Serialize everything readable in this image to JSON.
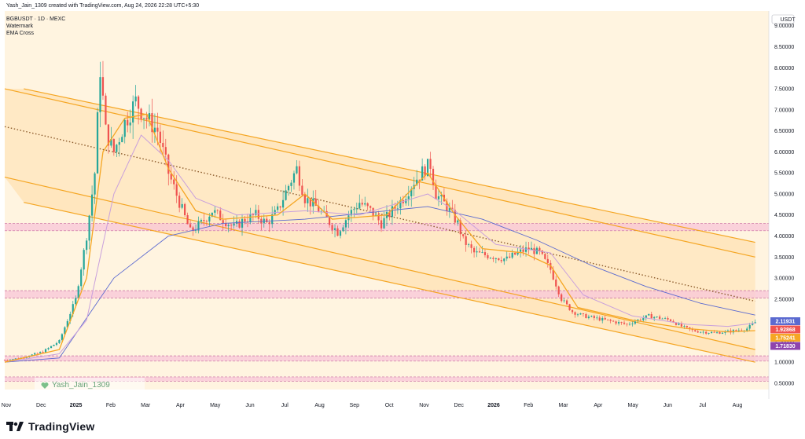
{
  "header": {
    "creator_line": "Yash_Jain_1309 created with TradingView.com, Aug 24, 2026 22:28 UTC+5:30",
    "symbol_line": "BGBUSDT · 1D · MEXC",
    "indicator_1": "Watermark",
    "indicator_2": "EMA Cross"
  },
  "watermark_text": "Yash_Jain_1309",
  "footer": {
    "brand": "TradingView"
  },
  "colors": {
    "background": "#ffffff",
    "channel_fill": "#ffe6bf",
    "channel_line": "#f5a623",
    "ema_fast": "#f5a623",
    "ema_slow": "#c9a0dc",
    "ma_long": "#5b6ad0",
    "zone_pink": "#f8c6d8",
    "candle_up": "#26a69a",
    "candle_down": "#ef5350",
    "mid_dotted": "#8b5a2b"
  },
  "chart_data": {
    "type": "candlestick",
    "currency": "USDT",
    "y_axis": {
      "ticks": [
        "9.00000",
        "8.50000",
        "8.00000",
        "7.50000",
        "7.00000",
        "6.50000",
        "6.00000",
        "5.50000",
        "5.00000",
        "4.50000",
        "4.00000",
        "3.50000",
        "3.00000",
        "2.50000",
        "2.00000",
        "1.50000",
        "1.00000",
        "0.50000"
      ],
      "range": [
        0.35,
        9.35
      ]
    },
    "x_axis": {
      "ticks": [
        "Nov",
        "Dec",
        "2025",
        "Feb",
        "Mar",
        "Apr",
        "May",
        "Jun",
        "Jul",
        "Aug",
        "Sep",
        "Oct",
        "Nov",
        "Dec",
        "2026",
        "Feb",
        "Mar",
        "Apr",
        "May",
        "Jun",
        "Jul",
        "Aug"
      ]
    },
    "price_labels": [
      {
        "value": "2.11931",
        "color": "#5b6ad0"
      },
      {
        "value": "1.92868",
        "color": "#ef5350"
      },
      {
        "value": "1.75241",
        "color": "#f5a623"
      },
      {
        "value": "1.71830",
        "color": "#8e44ad"
      }
    ],
    "price_path": [
      [
        0,
        1.05
      ],
      [
        6,
        1.1
      ],
      [
        14,
        1.25
      ],
      [
        20,
        1.5
      ],
      [
        26,
        2.5
      ],
      [
        30,
        4.0
      ],
      [
        33,
        5.5
      ],
      [
        35,
        8.0
      ],
      [
        37,
        6.5
      ],
      [
        40,
        6.0
      ],
      [
        44,
        6.7
      ],
      [
        48,
        7.2
      ],
      [
        52,
        6.8
      ],
      [
        56,
        6.5
      ],
      [
        60,
        5.5
      ],
      [
        64,
        4.8
      ],
      [
        68,
        4.1
      ],
      [
        72,
        4.3
      ],
      [
        76,
        4.6
      ],
      [
        80,
        4.4
      ],
      [
        84,
        4.2
      ],
      [
        88,
        4.4
      ],
      [
        92,
        4.5
      ],
      [
        96,
        4.3
      ],
      [
        100,
        4.6
      ],
      [
        104,
        5.2
      ],
      [
        107,
        5.6
      ],
      [
        110,
        4.9
      ],
      [
        114,
        4.7
      ],
      [
        118,
        4.4
      ],
      [
        122,
        4.1
      ],
      [
        126,
        4.5
      ],
      [
        130,
        4.8
      ],
      [
        134,
        4.6
      ],
      [
        138,
        4.3
      ],
      [
        142,
        4.6
      ],
      [
        146,
        4.9
      ],
      [
        150,
        5.3
      ],
      [
        154,
        5.6
      ],
      [
        156,
        5.7
      ],
      [
        158,
        5.0
      ],
      [
        162,
        4.7
      ],
      [
        166,
        4.3
      ],
      [
        168,
        3.9
      ],
      [
        172,
        3.6
      ],
      [
        176,
        3.55
      ],
      [
        180,
        3.5
      ],
      [
        184,
        3.45
      ],
      [
        188,
        3.6
      ],
      [
        192,
        3.7
      ],
      [
        196,
        3.6
      ],
      [
        200,
        3.2
      ],
      [
        204,
        2.5
      ],
      [
        208,
        2.2
      ],
      [
        212,
        2.1
      ],
      [
        216,
        2.05
      ],
      [
        220,
        2.0
      ],
      [
        224,
        1.95
      ],
      [
        228,
        1.9
      ],
      [
        232,
        2.0
      ],
      [
        236,
        2.1
      ],
      [
        240,
        2.05
      ],
      [
        244,
        2.0
      ],
      [
        248,
        1.85
      ],
      [
        252,
        1.75
      ],
      [
        256,
        1.72
      ],
      [
        260,
        1.7
      ],
      [
        264,
        1.72
      ],
      [
        268,
        1.75
      ],
      [
        272,
        1.8
      ],
      [
        275,
        1.95
      ]
    ],
    "ema_fast_path": [
      [
        0,
        1.0
      ],
      [
        20,
        1.3
      ],
      [
        30,
        3.0
      ],
      [
        36,
        6.0
      ],
      [
        44,
        6.8
      ],
      [
        52,
        6.9
      ],
      [
        60,
        5.6
      ],
      [
        70,
        4.6
      ],
      [
        80,
        4.4
      ],
      [
        100,
        4.5
      ],
      [
        110,
        5.0
      ],
      [
        120,
        4.4
      ],
      [
        140,
        4.5
      ],
      [
        155,
        5.5
      ],
      [
        165,
        4.5
      ],
      [
        175,
        3.7
      ],
      [
        190,
        3.6
      ],
      [
        200,
        3.3
      ],
      [
        210,
        2.3
      ],
      [
        230,
        2.0
      ],
      [
        250,
        1.8
      ],
      [
        265,
        1.72
      ],
      [
        275,
        1.75
      ]
    ],
    "ema_slow_path": [
      [
        0,
        1.0
      ],
      [
        20,
        1.2
      ],
      [
        30,
        2.0
      ],
      [
        40,
        5.0
      ],
      [
        50,
        6.4
      ],
      [
        60,
        5.8
      ],
      [
        70,
        4.9
      ],
      [
        85,
        4.5
      ],
      [
        110,
        4.6
      ],
      [
        130,
        4.5
      ],
      [
        155,
        5.0
      ],
      [
        165,
        4.6
      ],
      [
        180,
        3.8
      ],
      [
        200,
        3.6
      ],
      [
        212,
        2.6
      ],
      [
        230,
        2.1
      ],
      [
        250,
        1.9
      ],
      [
        265,
        1.85
      ],
      [
        275,
        1.93
      ]
    ],
    "ma_long_path": [
      [
        0,
        1.0
      ],
      [
        20,
        1.1
      ],
      [
        40,
        3.0
      ],
      [
        60,
        4.0
      ],
      [
        80,
        4.3
      ],
      [
        110,
        4.4
      ],
      [
        140,
        4.6
      ],
      [
        155,
        4.7
      ],
      [
        175,
        4.4
      ],
      [
        195,
        3.9
      ],
      [
        215,
        3.3
      ],
      [
        235,
        2.8
      ],
      [
        255,
        2.4
      ],
      [
        275,
        2.12
      ]
    ],
    "channel": {
      "upper_outer": [
        [
          7,
          7.5
        ],
        [
          275,
          3.85
        ]
      ],
      "upper_inner": [
        [
          0,
          7.5
        ],
        [
          275,
          3.5
        ]
      ],
      "mid_dotted": [
        [
          0,
          6.6
        ],
        [
          275,
          2.45
        ]
      ],
      "lower_inner": [
        [
          0,
          5.4
        ],
        [
          275,
          1.3
        ]
      ],
      "lower_outer": [
        [
          7,
          4.8
        ],
        [
          275,
          1.0
        ]
      ]
    },
    "zones": [
      [
        4.2,
        4.3
      ],
      [
        2.6,
        2.7
      ],
      [
        1.1,
        1.15
      ],
      [
        0.62,
        0.65
      ]
    ],
    "x_domain": [
      0,
      280
    ]
  }
}
